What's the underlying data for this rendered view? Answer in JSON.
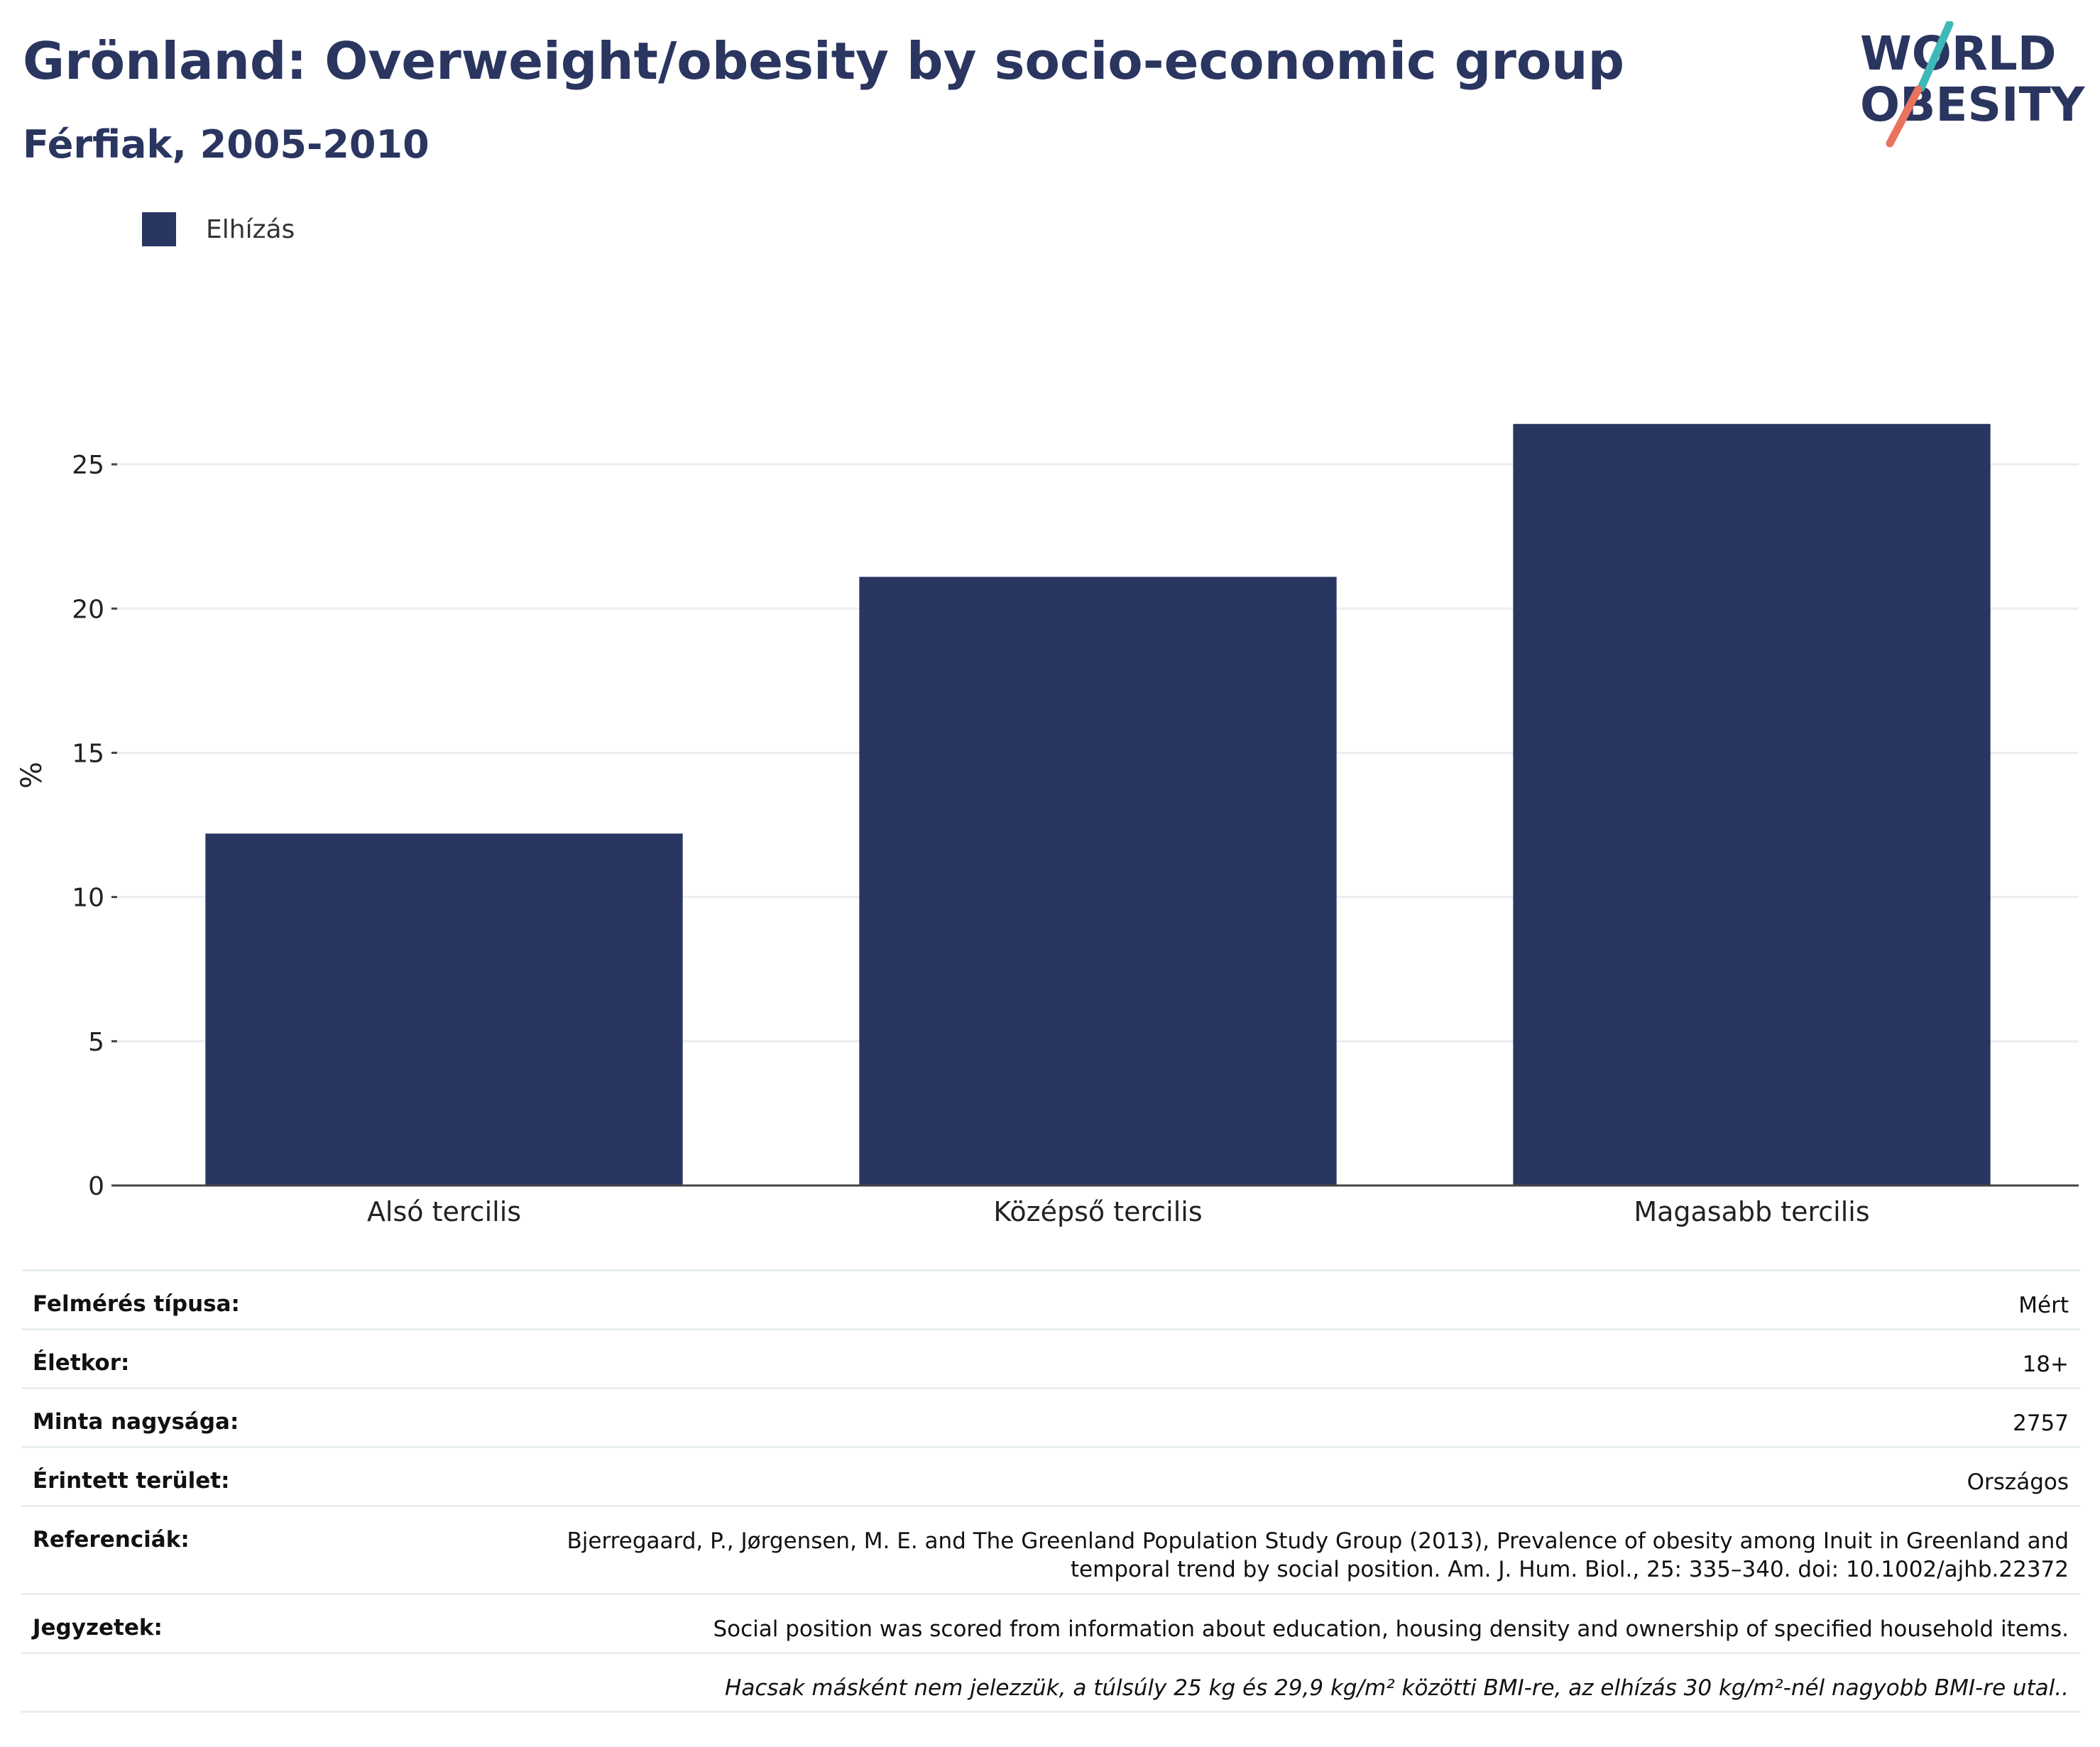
{
  "header": {
    "title": "Grönland: Overweight/obesity by socio-economic group",
    "subtitle": "Férfiak, 2005-2010"
  },
  "logo": {
    "line1": "WORLD",
    "line2": "OBESITY"
  },
  "colors": {
    "bar": "#2a3662",
    "title": "#2a3560",
    "grid": "#e9eef2",
    "logo_teal": "#3fb8b8",
    "logo_coral": "#e8735f"
  },
  "chart_data": {
    "type": "bar",
    "categories": [
      "Alsó tercilis",
      "Középső tercilis",
      "Magasabb tercilis"
    ],
    "series": [
      {
        "name": "Elhízás",
        "values": [
          12.2,
          21.1,
          26.4
        ]
      }
    ],
    "ylabel": "%",
    "ylim": [
      0,
      28.3
    ],
    "yticks": [
      0,
      5,
      10,
      15,
      20,
      25
    ],
    "grid": true,
    "legend": "top-left"
  },
  "info": {
    "rows": [
      {
        "key": "Felmérés típusa:",
        "value": "Mért"
      },
      {
        "key": "Életkor:",
        "value": "18+"
      },
      {
        "key": "Minta nagysága:",
        "value": "2757"
      },
      {
        "key": "Érintett terület:",
        "value": "Országos"
      },
      {
        "key": "Referenciák:",
        "value_line1": "Bjerregaard, P., Jørgensen, M. E. and The Greenland Population Study Group (2013), Prevalence of obesity among Inuit in Greenland and",
        "value_line2": "temporal trend by social position. Am. J. Hum. Biol., 25: 335–340. doi: 10.1002/ajhb.22372"
      },
      {
        "key": "Jegyzetek:",
        "value": "Social position was scored from information about education, housing density and ownership of specified household items."
      }
    ],
    "footnote": "Hacsak másként nem jelezzük, a túlsúly 25 kg és 29,9 kg/m² közötti BMI-re, az elhízás 30 kg/m²-nél nagyobb BMI-re utal.."
  }
}
